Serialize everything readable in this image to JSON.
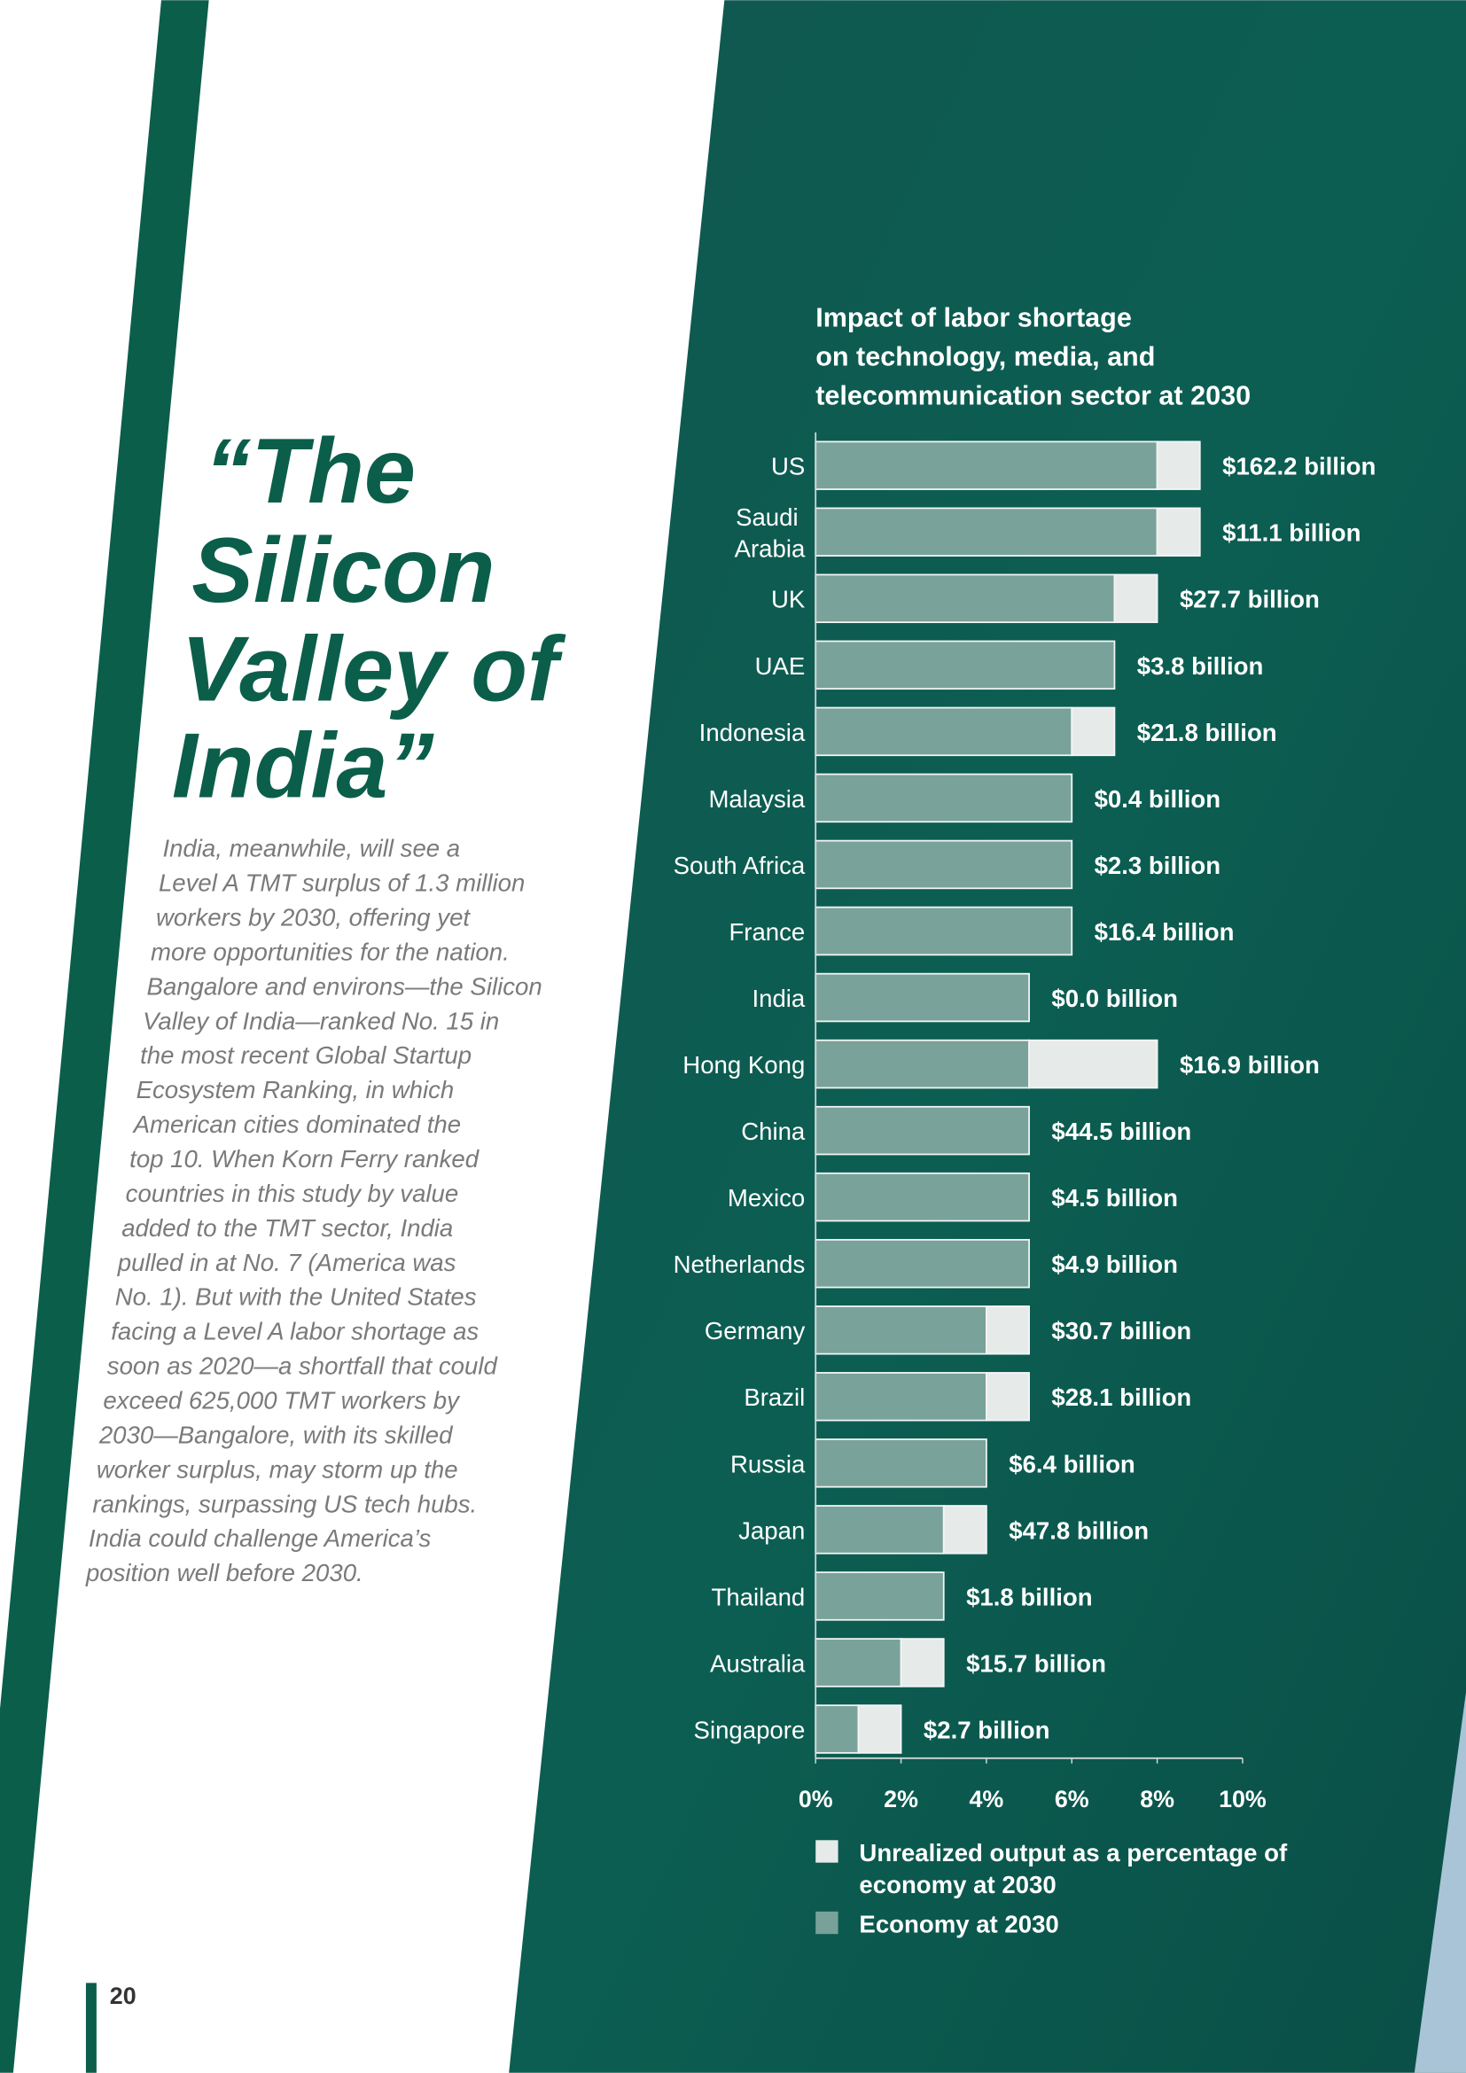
{
  "heading": [
    "“The",
    "Silicon",
    "Valley of",
    "India”"
  ],
  "body": [
    "India, meanwhile, will see a",
    "Level A TMT surplus of 1.3 million",
    "workers by 2030, offering yet",
    "more opportunities for the nation.",
    "Bangalore and environs—the Silicon",
    "Valley of India—ranked No. 15 in",
    "the most recent Global Startup",
    "Ecosystem Ranking, in which",
    "American cities dominated the",
    "top 10. When Korn Ferry ranked",
    "countries in this study by value",
    "added to the TMT sector, India",
    "pulled in at No. 7 (America was",
    "No. 1). But with the United States",
    "facing a Level A labor shortage as",
    "soon as 2020—a shortfall that could",
    "exceed 625,000 TMT workers by",
    "2030—Bangalore, with its skilled",
    "worker surplus, may storm up the",
    "rankings, surpassing US tech hubs.",
    "India could challenge America’s",
    "position well before 2030."
  ],
  "page_number": "20",
  "chart_data": {
    "type": "stacked_barh",
    "title": [
      "Impact of labor shortage",
      "on technology, media, and",
      "telecommunication sector at 2030"
    ],
    "categories": [
      "US",
      "Saudi Arabia",
      "UK",
      "UAE",
      "Indonesia",
      "Malaysia",
      "South Africa",
      "France",
      "India",
      "Hong Kong",
      "China",
      "Mexico",
      "Netherlands",
      "Germany",
      "Brazil",
      "Russia",
      "Japan",
      "Thailand",
      "Australia",
      "Singapore"
    ],
    "series": [
      {
        "name": "Economy at 2030",
        "color": "#9dbab3",
        "values": [
          8,
          8,
          7,
          7,
          6,
          6,
          6,
          6,
          5,
          5,
          5,
          5,
          5,
          4,
          4,
          4,
          3,
          3,
          2,
          1
        ]
      },
      {
        "name": "Unrealized output as a percentage of economy at 2030",
        "color": "#e6ebea",
        "values": [
          1,
          1,
          1,
          0,
          1,
          0,
          0,
          0,
          0,
          3,
          0,
          0,
          0,
          1,
          1,
          0,
          1,
          0,
          1,
          1
        ]
      }
    ],
    "annotations": [
      "$162.2 billion",
      "$11.1 billion",
      "$27.7 billion",
      "$3.8 billion",
      "$21.8 billion",
      "$0.4 billion",
      "$2.3 billion",
      "$16.4 billion",
      "$0.0 billion",
      "$16.9 billion",
      "$44.5 billion",
      "$4.5 billion",
      "$4.9 billion",
      "$30.7 billion",
      "$28.1 billion",
      "$6.4 billion",
      "$47.8 billion",
      "$1.8 billion",
      "$15.7 billion",
      "$2.7 billion"
    ],
    "xlim": [
      0,
      10
    ],
    "xticks": [
      {
        "value": 0,
        "label": "0%"
      },
      {
        "value": 2,
        "label": "2%"
      },
      {
        "value": 4,
        "label": "4%"
      },
      {
        "value": 6,
        "label": "6%"
      },
      {
        "value": 8,
        "label": "8%"
      },
      {
        "value": 10,
        "label": "10%"
      }
    ],
    "legend": "bottom"
  }
}
